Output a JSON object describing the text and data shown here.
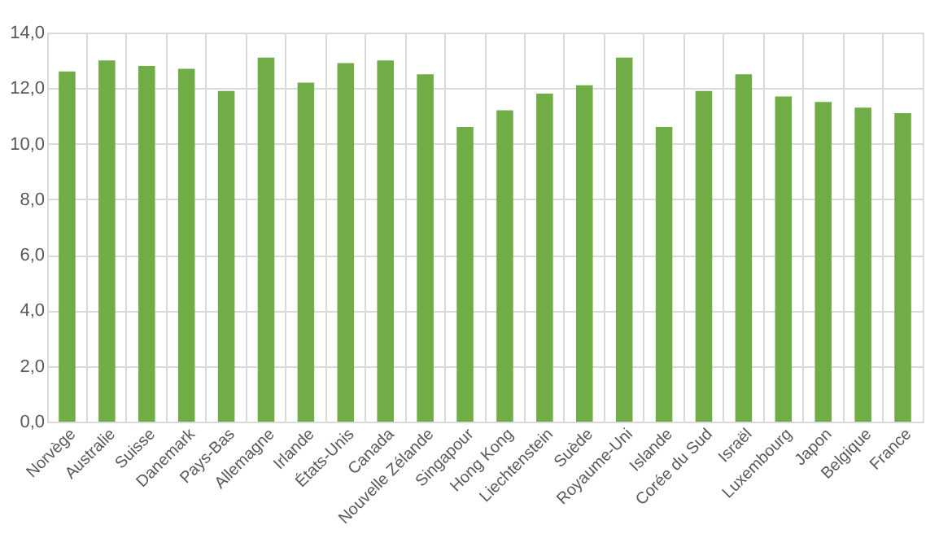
{
  "chart_data": {
    "type": "bar",
    "categories": [
      "Norvège",
      "Australie",
      "Suisse",
      "Danemark",
      "Pays-Bas",
      "Allemagne",
      "Irlande",
      "États-Unis",
      "Canada",
      "Nouvelle Zélande",
      "Singapour",
      "Hong Kong",
      "Liechtenstein",
      "Suède",
      "Royaume-Uni",
      "Islande",
      "Corée du Sud",
      "Israël",
      "Luxembourg",
      "Japon",
      "Belgique",
      "France"
    ],
    "values": [
      12.6,
      13.0,
      12.8,
      12.7,
      11.9,
      13.1,
      12.2,
      12.9,
      13.0,
      12.5,
      10.6,
      11.2,
      11.8,
      12.1,
      13.1,
      10.6,
      11.9,
      12.5,
      11.7,
      11.5,
      11.3,
      11.1
    ],
    "color": "#70ad47",
    "ylim": [
      0,
      14
    ],
    "yticks": [
      {
        "value": 0,
        "label": "0,0"
      },
      {
        "value": 2,
        "label": "2,0"
      },
      {
        "value": 4,
        "label": "4,0"
      },
      {
        "value": 6,
        "label": "6,0"
      },
      {
        "value": 8,
        "label": "8,0"
      },
      {
        "value": 10,
        "label": "10,0"
      },
      {
        "value": 12,
        "label": "12,0"
      },
      {
        "value": 14,
        "label": "14,0"
      }
    ],
    "grid": true
  }
}
